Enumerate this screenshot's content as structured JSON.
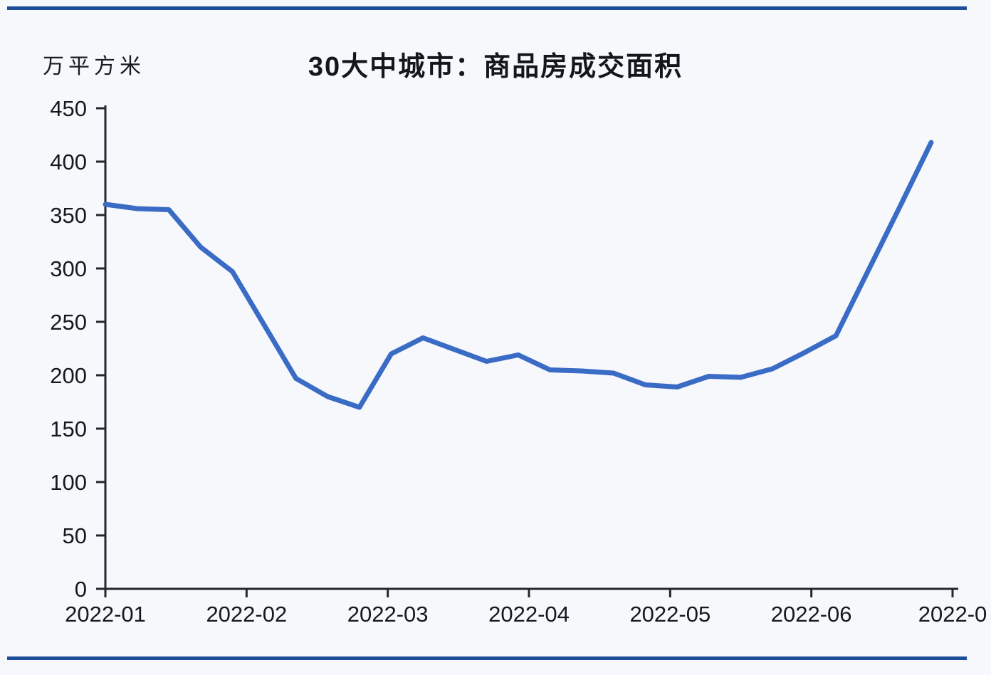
{
  "page": {
    "background": "#f7f8fb",
    "rule_color": "#1d4e9c"
  },
  "chart_data": {
    "type": "line",
    "title": "30大中城市：商品房成交面积",
    "ylabel": "万平方米",
    "x_tick_labels": [
      "2022-01",
      "2022-02",
      "2022-03",
      "2022-04",
      "2022-05",
      "2022-06",
      "2022-0"
    ],
    "y_ticks": [
      0,
      50,
      100,
      150,
      200,
      250,
      300,
      350,
      400,
      450
    ],
    "ylim": [
      0,
      450
    ],
    "grid": false,
    "legend": false,
    "line_color": "#3a6cc6",
    "axis_color": "#26262e",
    "tick_label_color": "#17171f",
    "values": [
      360,
      356,
      355,
      320,
      297,
      247,
      197,
      180,
      170,
      220,
      235,
      224,
      213,
      219,
      205,
      204,
      202,
      191,
      189,
      199,
      198,
      206,
      221,
      237,
      297,
      357,
      418
    ]
  }
}
